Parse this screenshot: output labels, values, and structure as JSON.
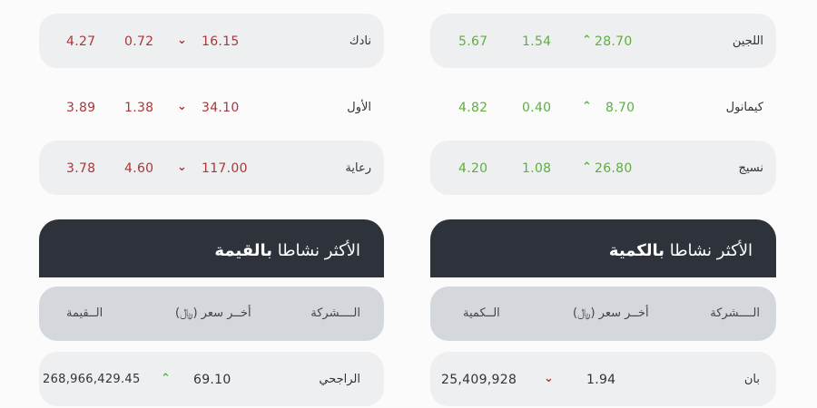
{
  "colors": {
    "up": "#5fae3e",
    "down": "#a8373a",
    "header_bg": "#2d323b"
  },
  "gainers": [
    {
      "name": "اللجين",
      "price": "28.70",
      "change": "1.54",
      "percent": "5.67",
      "direction": "up"
    },
    {
      "name": "كيمانول",
      "price": "8.70",
      "change": "0.40",
      "percent": "4.82",
      "direction": "up"
    },
    {
      "name": "نسيج",
      "price": "26.80",
      "change": "1.08",
      "percent": "4.20",
      "direction": "up"
    }
  ],
  "losers": [
    {
      "name": "نادك",
      "price": "16.15",
      "change": "0.72",
      "percent": "4.27",
      "direction": "down"
    },
    {
      "name": "الأول",
      "price": "34.10",
      "change": "1.38",
      "percent": "3.89",
      "direction": "down"
    },
    {
      "name": "رعاية",
      "price": "117.00",
      "change": "4.60",
      "percent": "3.78",
      "direction": "down"
    }
  ],
  "most_active_volume": {
    "title_prefix": "الأكثر نشاطا ",
    "title_bold": "بالكمية",
    "columns": {
      "company": "الــــشركة",
      "last_price": "أخــر سعر (﷼)",
      "volume": "الــكمية"
    },
    "rows": [
      {
        "name": "بان",
        "price": "1.94",
        "volume": "25,409,928",
        "direction": "down"
      }
    ]
  },
  "most_active_value": {
    "title_prefix": "الأكثر نشاطا ",
    "title_bold": "بالقيمة",
    "columns": {
      "company": "الــــشركة",
      "last_price": "أخــر سعر (﷼)",
      "value": "الــقيمة"
    },
    "rows": [
      {
        "name": "الراجحي",
        "price": "69.10",
        "value": "268,966,429.45",
        "direction": "up"
      }
    ]
  }
}
